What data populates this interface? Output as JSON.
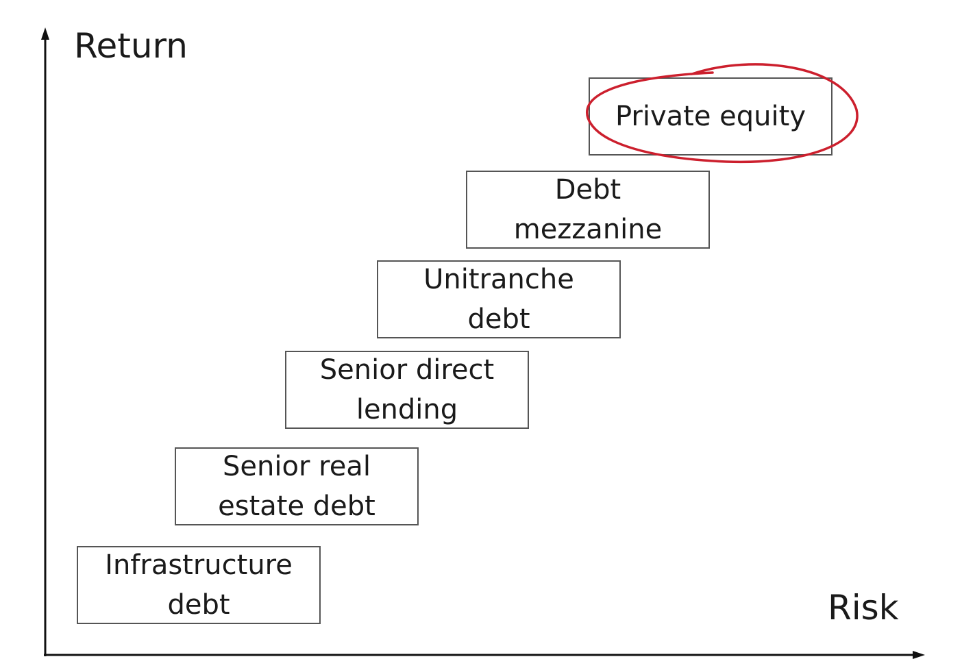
{
  "axes": {
    "y_label": "Return",
    "x_label": "Risk",
    "color": "#111111"
  },
  "boxes": [
    {
      "id": "infrastructure",
      "lines": [
        "Infrastructure",
        "debt"
      ]
    },
    {
      "id": "senior-real-estate",
      "lines": [
        "Senior real",
        "estate debt"
      ]
    },
    {
      "id": "senior-direct",
      "lines": [
        "Senior direct",
        "lending"
      ]
    },
    {
      "id": "unitranche",
      "lines": [
        "Unitranche",
        "debt"
      ]
    },
    {
      "id": "mezzanine",
      "lines": [
        "Debt",
        "mezzanine"
      ]
    },
    {
      "id": "private-equity",
      "lines": [
        "Private equity"
      ]
    }
  ],
  "highlight": {
    "target": "private-equity",
    "color": "#cc1f2d",
    "shape": "hand-drawn-ellipse"
  }
}
